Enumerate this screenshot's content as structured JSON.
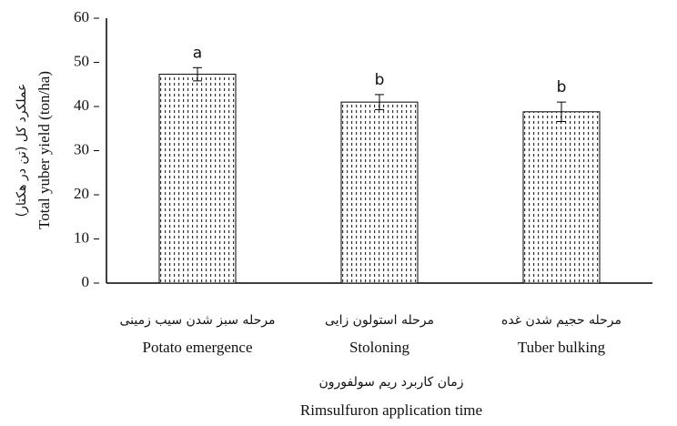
{
  "chart_data": {
    "type": "bar",
    "y_title": "Total yuber yield (ton/ha)",
    "y_title_fa": "عملکرد کل (تن در هکتار)",
    "x_title": "Rimsulfuron application time",
    "x_title_fa": "زمان کاربرد ریم سولفورون",
    "categories": [
      "Potato emergence",
      "Stoloning",
      "Tuber bulking"
    ],
    "categories_fa": [
      "مرحله سبز شدن سیب زمینی",
      "مرحله استولون زایی",
      "مرحله حجیم شدن غده"
    ],
    "values": [
      47.3,
      41,
      38.8
    ],
    "errors": [
      1.5,
      1.7,
      2.2
    ],
    "letters": [
      "a",
      "b",
      "b"
    ],
    "color": "#333333",
    "ylim": [
      0,
      60
    ],
    "yticks": [
      0,
      10,
      20,
      30,
      40,
      50,
      60
    ]
  }
}
